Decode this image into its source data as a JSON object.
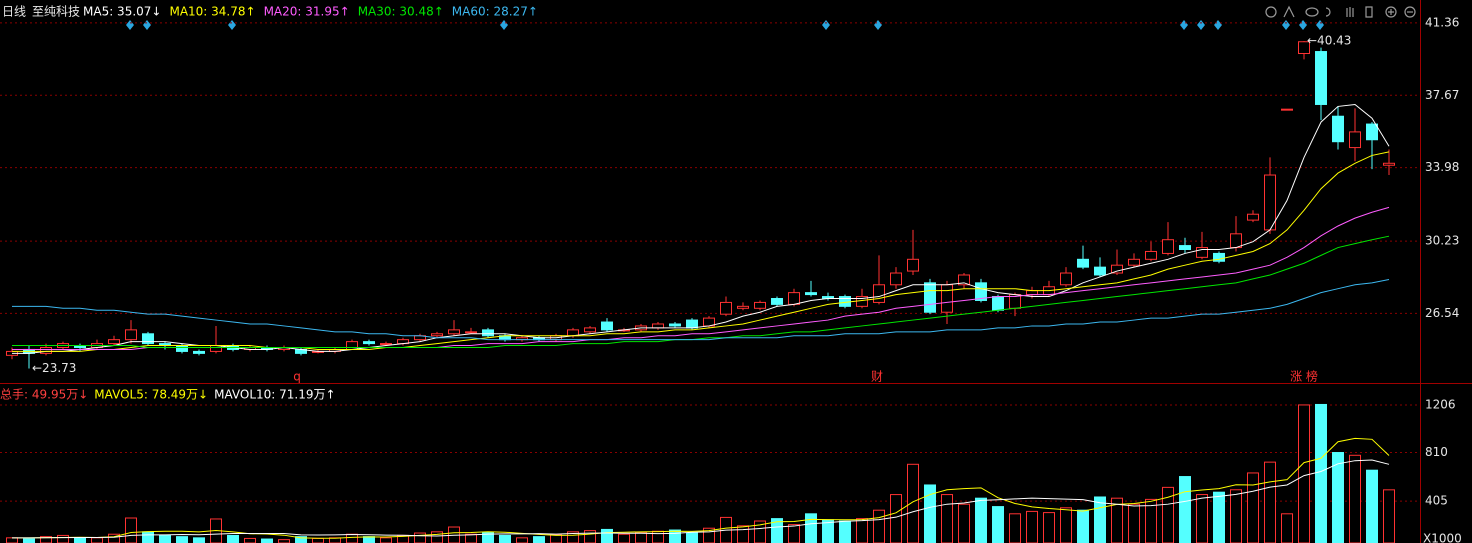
{
  "chart_data": {
    "type": "candlestick",
    "period": "日线",
    "title": "至纯科技",
    "up_color": "#ff3232",
    "down_color": "#54ffff",
    "open": [
      24.4,
      24.7,
      24.5,
      24.8,
      24.9,
      24.8,
      25.0,
      25.2,
      25.5,
      25.0,
      24.9,
      24.6,
      24.6,
      24.9,
      24.7,
      24.8,
      24.7,
      24.7,
      24.6,
      24.6,
      24.7,
      25.1,
      25.0,
      25.0,
      25.2,
      25.4,
      25.5,
      25.6,
      25.7,
      25.4,
      25.2,
      25.3,
      25.2,
      25.4,
      25.6,
      26.1,
      25.7,
      25.7,
      25.8,
      26.0,
      26.2,
      25.9,
      26.5,
      26.8,
      26.8,
      27.3,
      27.0,
      27.6,
      27.4,
      27.4,
      26.9,
      27.1,
      28.0,
      28.7,
      28.1,
      26.6,
      28.0,
      28.1,
      27.4,
      26.8,
      27.5,
      27.5,
      28.0,
      29.3,
      28.9,
      28.6,
      29.0,
      29.3,
      29.6,
      30.0,
      29.4,
      29.6,
      29.9,
      31.3,
      30.8,
      36.96,
      39.8,
      39.9,
      36.6,
      35.0,
      36.2,
      34.1
    ],
    "high": [
      24.8,
      24.9,
      25.0,
      25.1,
      25.0,
      25.2,
      25.4,
      26.2,
      25.6,
      25.1,
      25.0,
      24.7,
      25.9,
      25.0,
      24.9,
      24.9,
      24.9,
      24.8,
      24.7,
      24.8,
      25.2,
      25.2,
      25.1,
      25.3,
      25.5,
      25.6,
      26.2,
      25.8,
      25.8,
      25.5,
      25.4,
      25.4,
      25.5,
      25.8,
      25.9,
      26.3,
      25.8,
      26.0,
      26.1,
      26.1,
      26.3,
      26.4,
      27.4,
      27.1,
      27.2,
      27.4,
      27.8,
      28.2,
      27.6,
      27.5,
      27.8,
      29.5,
      28.9,
      30.8,
      28.3,
      28.2,
      28.6,
      28.3,
      27.5,
      27.6,
      27.9,
      28.2,
      28.9,
      30.0,
      29.4,
      29.8,
      29.6,
      30.2,
      31.2,
      30.4,
      30.7,
      29.7,
      31.5,
      31.8,
      34.5,
      36.96,
      40.43,
      40.1,
      37.1,
      37.0,
      36.3,
      34.9
    ],
    "low": [
      24.2,
      23.73,
      24.4,
      24.7,
      24.6,
      24.7,
      24.9,
      25.0,
      24.9,
      24.7,
      24.5,
      24.4,
      24.5,
      24.6,
      24.6,
      24.6,
      24.6,
      24.4,
      24.5,
      24.5,
      24.7,
      24.9,
      24.9,
      24.9,
      25.1,
      25.3,
      25.4,
      25.5,
      25.3,
      25.1,
      25.1,
      25.1,
      25.1,
      25.3,
      25.5,
      25.6,
      25.6,
      25.6,
      25.7,
      25.8,
      25.7,
      25.8,
      26.4,
      26.7,
      26.7,
      26.9,
      26.9,
      27.4,
      27.2,
      26.8,
      26.8,
      27.0,
      27.8,
      28.5,
      26.5,
      26.0,
      27.8,
      27.1,
      26.6,
      26.4,
      27.3,
      27.4,
      27.9,
      28.8,
      28.4,
      28.5,
      28.9,
      29.2,
      29.5,
      29.6,
      29.3,
      29.1,
      29.7,
      31.2,
      30.6,
      36.96,
      39.5,
      36.4,
      34.9,
      34.3,
      33.9,
      33.6
    ],
    "close": [
      24.6,
      24.5,
      24.8,
      25.0,
      24.8,
      25.0,
      25.2,
      25.7,
      25.0,
      24.9,
      24.6,
      24.5,
      24.9,
      24.7,
      24.8,
      24.7,
      24.8,
      24.5,
      24.6,
      24.7,
      25.1,
      25.0,
      25.0,
      25.2,
      25.4,
      25.5,
      25.7,
      25.6,
      25.4,
      25.2,
      25.3,
      25.2,
      25.4,
      25.7,
      25.8,
      25.7,
      25.7,
      25.9,
      26.0,
      25.9,
      25.8,
      26.3,
      27.1,
      26.9,
      27.1,
      27.0,
      27.6,
      27.5,
      27.3,
      26.9,
      27.4,
      28.0,
      28.6,
      29.3,
      26.6,
      28.0,
      28.5,
      27.2,
      26.7,
      27.5,
      27.7,
      27.9,
      28.6,
      28.9,
      28.5,
      29.0,
      29.3,
      29.7,
      30.3,
      29.8,
      29.9,
      29.2,
      30.6,
      31.6,
      33.6,
      36.96,
      40.4,
      37.2,
      35.3,
      35.8,
      35.4,
      34.2
    ],
    "ylim": [
      23.04,
      42.53
    ],
    "yticks": [
      41.36,
      37.67,
      33.98,
      30.23,
      26.54
    ],
    "grid": true,
    "high_label": "←40.43",
    "low_label": "←23.73",
    "event_labels": [
      "q",
      "财",
      "涨 榜"
    ],
    "ma_series": [
      {
        "name": "MA5: 35.07↓",
        "color": "#ffffff",
        "values": [
          24.5,
          24.5,
          24.6,
          24.6,
          24.7,
          24.8,
          24.9,
          25.1,
          25.1,
          25.1,
          25.0,
          24.9,
          24.9,
          24.8,
          24.7,
          24.7,
          24.8,
          24.7,
          24.6,
          24.6,
          24.7,
          24.8,
          24.9,
          25.0,
          25.1,
          25.3,
          25.4,
          25.5,
          25.5,
          25.5,
          25.4,
          25.3,
          25.3,
          25.4,
          25.5,
          25.6,
          25.7,
          25.8,
          25.8,
          25.8,
          25.8,
          25.9,
          26.1,
          26.4,
          26.6,
          26.9,
          27.0,
          27.2,
          27.3,
          27.3,
          27.3,
          27.4,
          27.7,
          28.0,
          28.0,
          28.0,
          28.1,
          27.8,
          27.6,
          27.5,
          27.4,
          27.4,
          27.7,
          28.1,
          28.4,
          28.7,
          28.9,
          29.1,
          29.3,
          29.6,
          29.8,
          29.8,
          29.9,
          30.2,
          30.8,
          32.3,
          34.5,
          36.3,
          37.1,
          37.2,
          36.5,
          35.07
        ]
      },
      {
        "name": "MA10: 34.78↑",
        "color": "#ffff00",
        "values": [
          24.6,
          24.6,
          24.6,
          24.6,
          24.6,
          24.7,
          24.7,
          24.8,
          24.9,
          24.9,
          24.9,
          24.9,
          24.9,
          24.9,
          24.9,
          24.8,
          24.8,
          24.8,
          24.7,
          24.7,
          24.7,
          24.7,
          24.8,
          24.8,
          24.9,
          25.0,
          25.1,
          25.2,
          25.3,
          25.4,
          25.4,
          25.4,
          25.4,
          25.4,
          25.4,
          25.5,
          25.5,
          25.6,
          25.6,
          25.7,
          25.7,
          25.8,
          25.9,
          26.0,
          26.2,
          26.4,
          26.6,
          26.8,
          27.0,
          27.1,
          27.2,
          27.3,
          27.5,
          27.6,
          27.7,
          27.7,
          27.8,
          27.8,
          27.8,
          27.8,
          27.7,
          27.7,
          27.8,
          27.9,
          28.0,
          28.1,
          28.3,
          28.5,
          28.8,
          29.0,
          29.2,
          29.3,
          29.5,
          29.7,
          30.1,
          30.8,
          31.8,
          32.9,
          33.7,
          34.2,
          34.6,
          34.78
        ]
      },
      {
        "name": "MA20: 31.95↑",
        "color": "#ff5cff",
        "values": [
          24.7,
          24.7,
          24.7,
          24.7,
          24.7,
          24.7,
          24.7,
          24.7,
          24.8,
          24.8,
          24.8,
          24.8,
          24.8,
          24.8,
          24.8,
          24.8,
          24.8,
          24.8,
          24.8,
          24.8,
          24.8,
          24.8,
          24.8,
          24.8,
          24.8,
          24.8,
          24.9,
          24.9,
          25.0,
          25.0,
          25.0,
          25.1,
          25.1,
          25.1,
          25.2,
          25.2,
          25.3,
          25.3,
          25.4,
          25.4,
          25.5,
          25.5,
          25.6,
          25.7,
          25.8,
          25.9,
          26.0,
          26.1,
          26.2,
          26.4,
          26.5,
          26.6,
          26.8,
          26.9,
          27.0,
          27.1,
          27.2,
          27.3,
          27.4,
          27.4,
          27.5,
          27.5,
          27.6,
          27.7,
          27.8,
          27.9,
          28.0,
          28.1,
          28.2,
          28.3,
          28.4,
          28.5,
          28.6,
          28.8,
          29.0,
          29.4,
          29.9,
          30.5,
          31.0,
          31.4,
          31.7,
          31.95
        ]
      },
      {
        "name": "MA30: 30.48↑",
        "color": "#00e600",
        "values": [
          24.9,
          24.9,
          24.9,
          24.9,
          24.9,
          24.9,
          24.9,
          24.9,
          24.8,
          24.8,
          24.8,
          24.8,
          24.8,
          24.8,
          24.8,
          24.8,
          24.8,
          24.8,
          24.8,
          24.8,
          24.8,
          24.8,
          24.8,
          24.8,
          24.8,
          24.8,
          24.8,
          24.8,
          24.8,
          24.9,
          24.9,
          24.9,
          24.9,
          25.0,
          25.0,
          25.0,
          25.1,
          25.1,
          25.1,
          25.2,
          25.2,
          25.3,
          25.3,
          25.4,
          25.4,
          25.5,
          25.6,
          25.6,
          25.7,
          25.8,
          25.9,
          26.0,
          26.1,
          26.2,
          26.3,
          26.4,
          26.5,
          26.6,
          26.7,
          26.8,
          26.9,
          27.0,
          27.1,
          27.2,
          27.3,
          27.4,
          27.5,
          27.6,
          27.7,
          27.8,
          27.9,
          28.0,
          28.1,
          28.3,
          28.5,
          28.8,
          29.1,
          29.5,
          29.9,
          30.1,
          30.3,
          30.48
        ]
      },
      {
        "name": "MA60: 28.27↑",
        "color": "#3cb8f0",
        "values": [
          26.9,
          26.9,
          26.9,
          26.8,
          26.8,
          26.7,
          26.7,
          26.6,
          26.5,
          26.5,
          26.4,
          26.3,
          26.2,
          26.1,
          26.0,
          26.0,
          25.9,
          25.8,
          25.7,
          25.6,
          25.6,
          25.5,
          25.5,
          25.4,
          25.4,
          25.3,
          25.3,
          25.3,
          25.2,
          25.2,
          25.2,
          25.2,
          25.2,
          25.2,
          25.2,
          25.2,
          25.2,
          25.2,
          25.2,
          25.2,
          25.2,
          25.2,
          25.3,
          25.3,
          25.3,
          25.3,
          25.4,
          25.4,
          25.4,
          25.5,
          25.5,
          25.5,
          25.6,
          25.6,
          25.6,
          25.7,
          25.7,
          25.7,
          25.8,
          25.8,
          25.9,
          25.9,
          26.0,
          26.0,
          26.1,
          26.1,
          26.2,
          26.3,
          26.3,
          26.4,
          26.5,
          26.5,
          26.6,
          26.7,
          26.8,
          27.0,
          27.3,
          27.6,
          27.8,
          28.0,
          28.1,
          28.27
        ]
      }
    ],
    "volume": {
      "name": "总手: 49.95万↓",
      "name_color": "#ff4040",
      "values": [
        100,
        90,
        110,
        120,
        95,
        100,
        130,
        265,
        150,
        120,
        110,
        100,
        257,
        120,
        95,
        90,
        85,
        110,
        95,
        100,
        130,
        110,
        100,
        120,
        140,
        150,
        190,
        130,
        145,
        120,
        100,
        110,
        125,
        150,
        160,
        170,
        130,
        145,
        155,
        165,
        140,
        180,
        270,
        200,
        240,
        260,
        210,
        300,
        250,
        240,
        260,
        330,
        460,
        712,
        540,
        460,
        380,
        430,
        360,
        300,
        320,
        310,
        350,
        330,
        440,
        430,
        380,
        420,
        520,
        610,
        460,
        480,
        500,
        640,
        730,
        300,
        1206,
        1210,
        810,
        787,
        663,
        499.5
      ],
      "ylim": [
        57,
        1347
      ],
      "yticks": [
        1206,
        810,
        405
      ],
      "unit_label": "X1000",
      "ma_series": [
        {
          "name": "MAVOL5: 78.49万↓",
          "color": "#ffff00",
          "values": [
            100,
            100,
            102,
            103,
            105,
            103,
            109,
            144,
            152,
            155,
            155,
            150,
            161,
            150,
            134,
            132,
            122,
            100,
            96,
            96,
            104,
            108,
            107,
            112,
            120,
            129,
            142,
            144,
            151,
            147,
            137,
            129,
            120,
            121,
            131,
            143,
            147,
            150,
            152,
            155,
            154,
            160,
            181,
            191,
            208,
            234,
            236,
            254,
            252,
            250,
            252,
            268,
            308,
            400,
            460,
            500,
            510,
            516,
            434,
            386,
            358,
            344,
            334,
            322,
            350,
            378,
            386,
            404,
            438,
            484,
            498,
            510,
            542,
            540,
            566,
            584,
            726,
            762,
            900,
            928,
            920,
            784.9
          ]
        },
        {
          "name": "MAVOL10: 71.19万↑",
          "color": "#ffffff",
          "values": [
            100,
            100,
            101,
            102,
            103,
            103,
            105,
            120,
            125,
            125,
            128,
            126,
            131,
            136,
            136,
            136,
            136,
            125,
            124,
            125,
            128,
            126,
            123,
            121,
            117,
            115,
            122,
            125,
            131,
            133,
            133,
            135,
            131,
            136,
            139,
            140,
            138,
            138,
            135,
            137,
            146,
            150,
            164,
            168,
            178,
            190,
            198,
            217,
            227,
            238,
            243,
            252,
            272,
            317,
            354,
            380,
            390,
            412,
            417,
            424,
            430,
            426,
            422,
            418,
            392,
            380,
            365,
            368,
            380,
            403,
            430,
            445,
            462,
            488,
            522,
            540,
            618,
            652,
            716,
            742,
            748,
            711.9
          ]
        }
      ]
    }
  }
}
